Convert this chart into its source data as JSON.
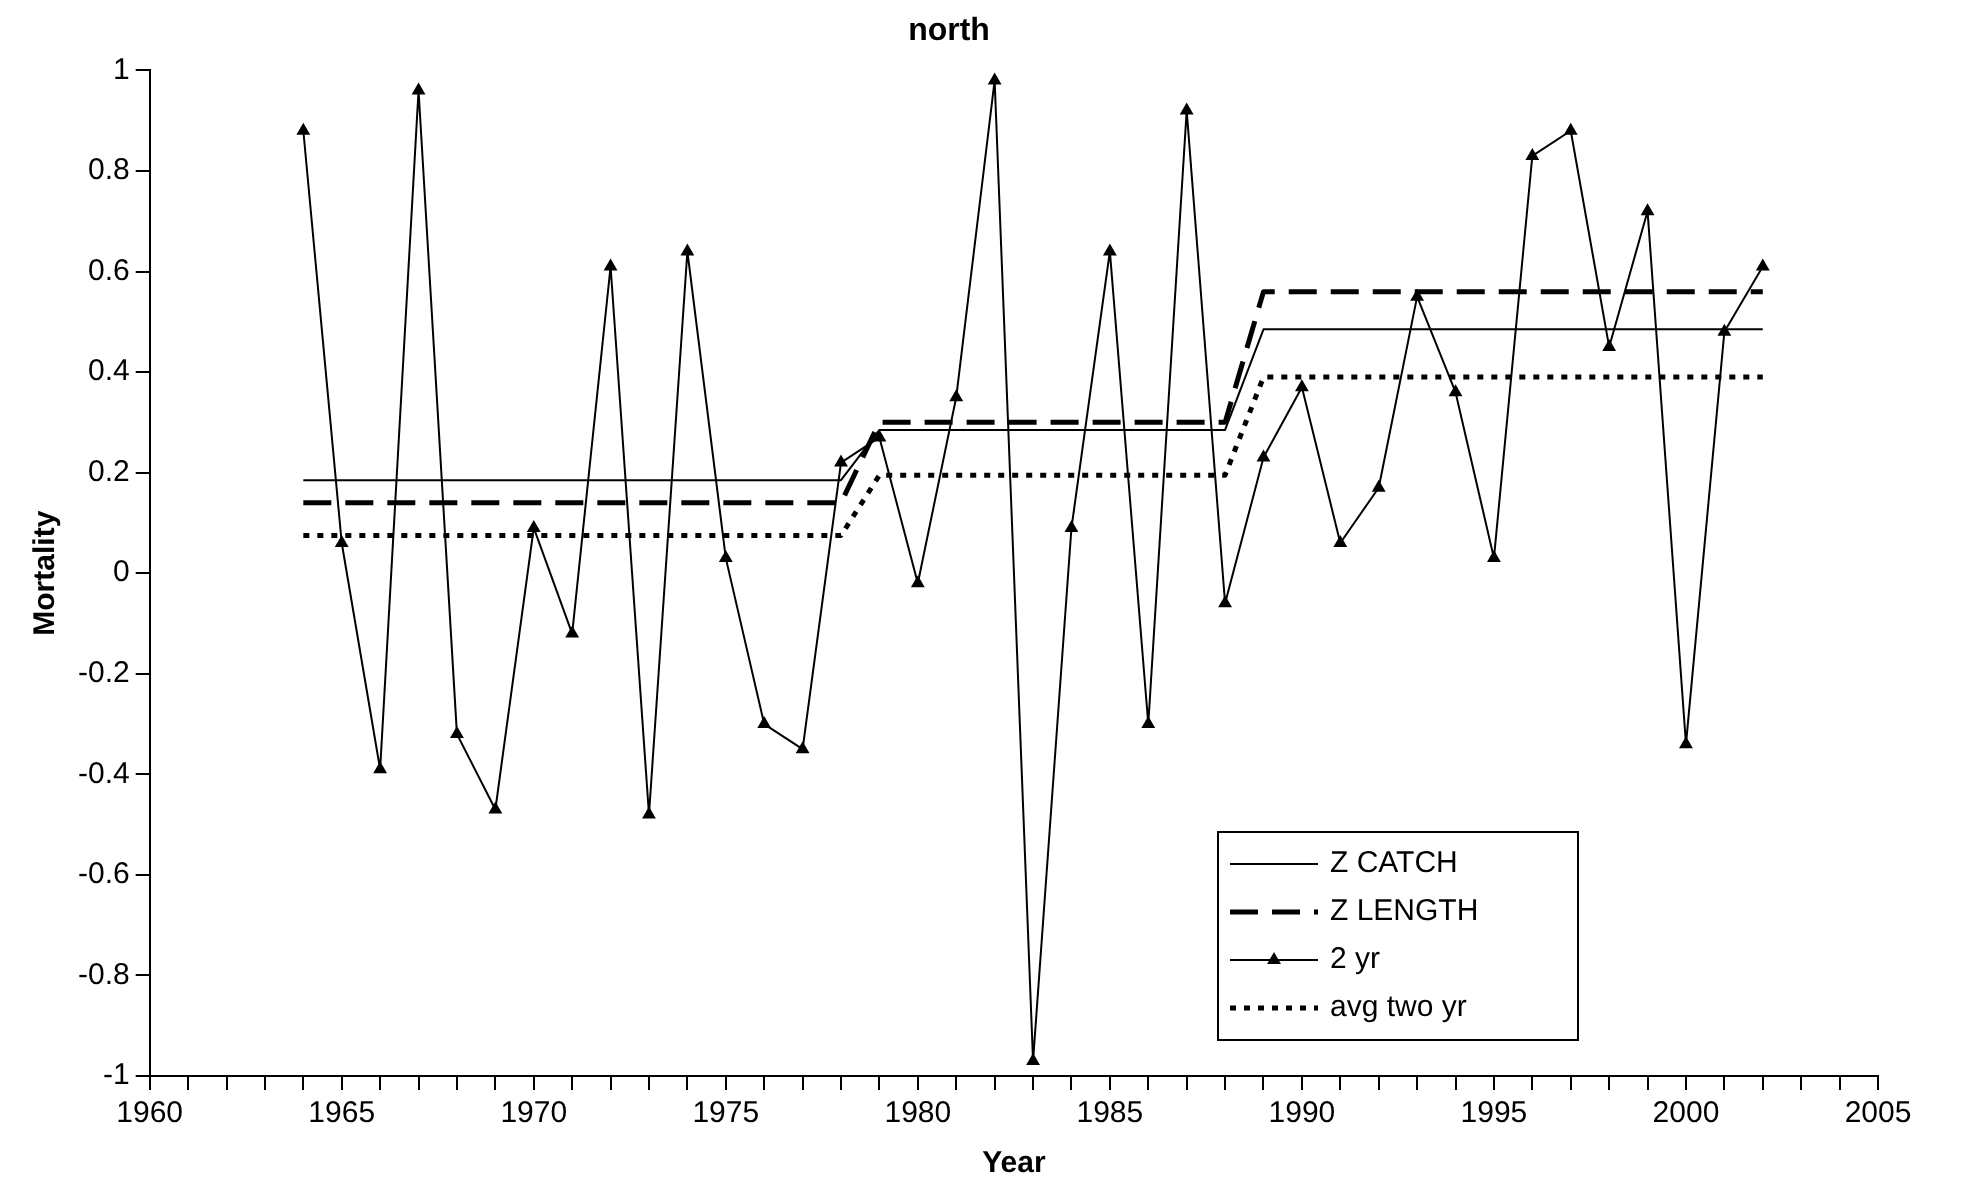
{
  "chart_data": {
    "type": "line",
    "title": "north",
    "xlabel": "Year",
    "ylabel": "Mortality",
    "xlim": [
      1960,
      2005
    ],
    "xticks": [
      1960,
      {
        "value": 1961,
        "label": null
      },
      {
        "value": 1962,
        "label": null
      },
      {
        "value": 1963,
        "label": null
      },
      {
        "value": 1964,
        "label": null
      },
      1965,
      {
        "value": 1966,
        "label": null
      },
      {
        "value": 1967,
        "label": null
      },
      {
        "value": 1968,
        "label": null
      },
      {
        "value": 1969,
        "label": null
      },
      1970,
      {
        "value": 1971,
        "label": null
      },
      {
        "value": 1972,
        "label": null
      },
      {
        "value": 1973,
        "label": null
      },
      {
        "value": 1974,
        "label": null
      },
      1975,
      {
        "value": 1976,
        "label": null
      },
      {
        "value": 1977,
        "label": null
      },
      {
        "value": 1978,
        "label": null
      },
      {
        "value": 1979,
        "label": null
      },
      1980,
      {
        "value": 1981,
        "label": null
      },
      {
        "value": 1982,
        "label": null
      },
      {
        "value": 1983,
        "label": null
      },
      {
        "value": 1984,
        "label": null
      },
      1985,
      {
        "value": 1986,
        "label": null
      },
      {
        "value": 1987,
        "label": null
      },
      {
        "value": 1988,
        "label": null
      },
      {
        "value": 1989,
        "label": null
      },
      1990,
      {
        "value": 1991,
        "label": null
      },
      {
        "value": 1992,
        "label": null
      },
      {
        "value": 1993,
        "label": null
      },
      {
        "value": 1994,
        "label": null
      },
      1995,
      {
        "value": 1996,
        "label": null
      },
      {
        "value": 1997,
        "label": null
      },
      {
        "value": 1998,
        "label": null
      },
      {
        "value": 1999,
        "label": null
      },
      2000,
      {
        "value": 2001,
        "label": null
      },
      {
        "value": 2002,
        "label": null
      },
      {
        "value": 2003,
        "label": null
      },
      {
        "value": 2004,
        "label": null
      },
      2005
    ],
    "ylim": [
      -1,
      1
    ],
    "yticks": [
      -1,
      -0.8,
      -0.6,
      -0.4,
      -0.2,
      0,
      0.2,
      0.4,
      0.6,
      0.8,
      1
    ],
    "grid": false,
    "legend": "bottom right",
    "series": [
      {
        "name": "Z CATCH",
        "color": "#000000",
        "line_style": "solid",
        "marker": "none",
        "x": [
          1964,
          1978,
          1979,
          1988,
          1989,
          2002
        ],
        "values": [
          0.185,
          0.185,
          0.285,
          0.285,
          0.485,
          0.485
        ]
      },
      {
        "name": "Z LENGTH",
        "color": "#000000",
        "line_style": "dashed",
        "marker": "none",
        "x": [
          1964,
          1978,
          1979,
          1988,
          1989,
          2002
        ],
        "values": [
          0.14,
          0.14,
          0.3,
          0.3,
          0.56,
          0.56
        ]
      },
      {
        "name": "2 yr",
        "color": "#000000",
        "line_style": "solid",
        "marker": "triangle",
        "x": [
          1964,
          1965,
          1966,
          1967,
          1968,
          1969,
          1970,
          1971,
          1972,
          1973,
          1974,
          1975,
          1976,
          1977,
          1978,
          1979,
          1980,
          1981,
          1982,
          1983,
          1984,
          1985,
          1986,
          1987,
          1988,
          1989,
          1990,
          1991,
          1992,
          1993,
          1994,
          1995,
          1996,
          1997,
          1998,
          1999,
          2000,
          2001,
          2002
        ],
        "values": [
          0.88,
          0.06,
          -0.39,
          0.96,
          -0.32,
          -0.47,
          0.09,
          -0.12,
          0.61,
          -0.48,
          0.64,
          0.03,
          -0.3,
          -0.35,
          0.22,
          0.27,
          -0.02,
          0.35,
          0.98,
          -0.97,
          0.09,
          0.64,
          -0.3,
          0.92,
          -0.06,
          0.23,
          0.37,
          0.06,
          0.17,
          0.55,
          0.36,
          0.03,
          0.83,
          0.88,
          0.45,
          0.72,
          -0.34,
          0.48,
          0.61
        ]
      },
      {
        "name": "avg two yr",
        "color": "#000000",
        "line_style": "dotted",
        "marker": "none",
        "x": [
          1964,
          1978,
          1979,
          1988,
          1989,
          2002
        ],
        "values": [
          0.075,
          0.075,
          0.195,
          0.195,
          0.39,
          0.39
        ]
      }
    ]
  }
}
